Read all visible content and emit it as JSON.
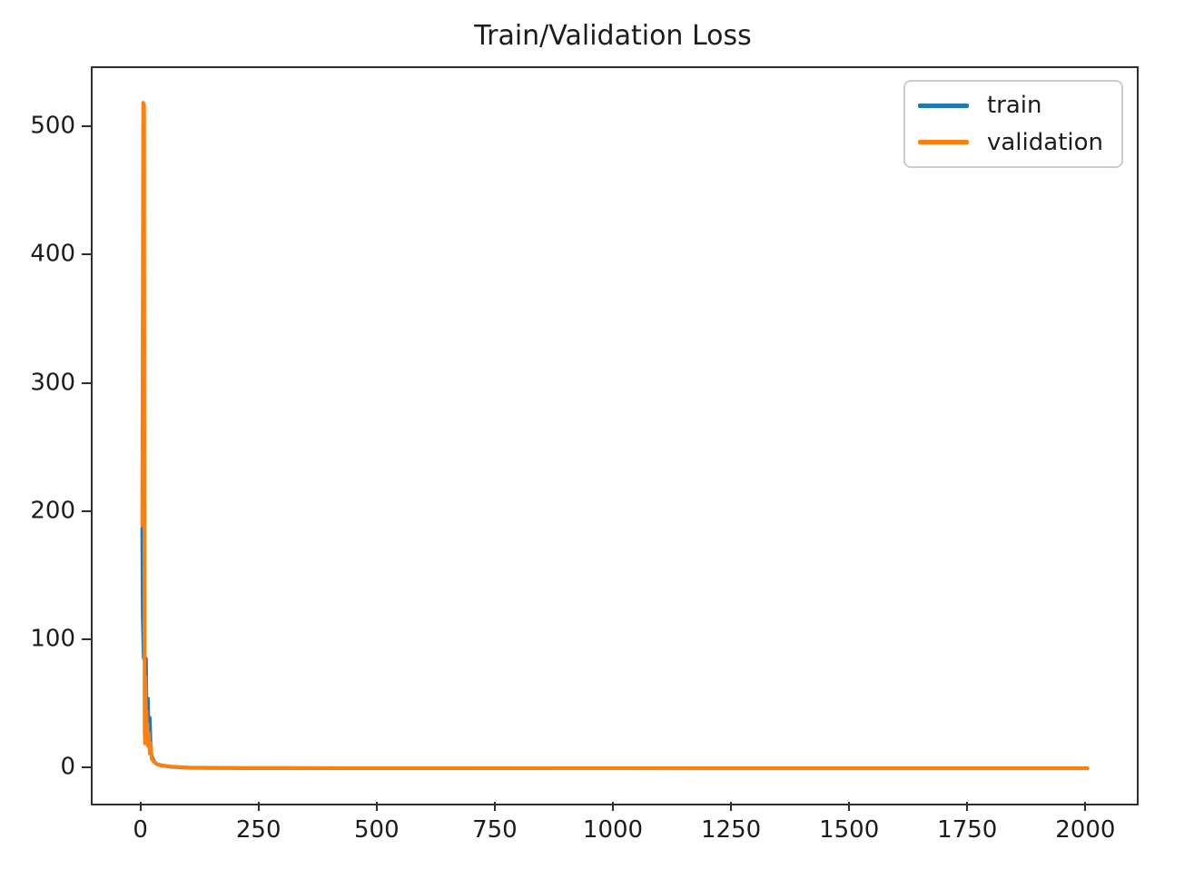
{
  "page": {
    "background": "#ffffff"
  },
  "chart_data": {
    "type": "line",
    "title": "Train/Validation Loss",
    "xlabel": "",
    "ylabel": "",
    "grid": false,
    "xlim": [
      -105,
      2105
    ],
    "ylim": [
      -27,
      547
    ],
    "x_ticks": {
      "values": [
        0,
        250,
        500,
        750,
        1000,
        1250,
        1500,
        1750,
        2000
      ],
      "labels": [
        "0",
        "250",
        "500",
        "750",
        "1000",
        "1250",
        "1500",
        "1750",
        "2000"
      ]
    },
    "y_ticks": {
      "values": [
        0,
        100,
        200,
        300,
        400,
        500
      ],
      "labels": [
        "0",
        "100",
        "200",
        "300",
        "400",
        "500"
      ]
    },
    "legend": {
      "position": "upper right",
      "entries": [
        {
          "name": "train",
          "color": "#1f77b4"
        },
        {
          "name": "validation",
          "color": "#ff7f0e"
        }
      ]
    },
    "series": [
      {
        "name": "train",
        "color": "#1f77b4",
        "line_width": 4,
        "points": [
          [
            0,
            188
          ],
          [
            1,
            120
          ],
          [
            3,
            87
          ],
          [
            5,
            85
          ],
          [
            6,
            87
          ],
          [
            8,
            86
          ],
          [
            9,
            50
          ],
          [
            10,
            30
          ],
          [
            12,
            55
          ],
          [
            14,
            25
          ],
          [
            16,
            40
          ],
          [
            18,
            15
          ],
          [
            20,
            10
          ],
          [
            25,
            6
          ],
          [
            30,
            4
          ],
          [
            40,
            2.8
          ],
          [
            60,
            1.8
          ],
          [
            80,
            1.3
          ],
          [
            100,
            1.0
          ],
          [
            150,
            0.85
          ],
          [
            200,
            0.75
          ],
          [
            300,
            0.7
          ],
          [
            500,
            0.65
          ],
          [
            1000,
            0.6
          ],
          [
            1500,
            0.57
          ],
          [
            2000,
            0.55
          ]
        ]
      },
      {
        "name": "validation",
        "color": "#ff7f0e",
        "line_width": 4,
        "points": [
          [
            0,
            190
          ],
          [
            2,
            520
          ],
          [
            4,
            518
          ],
          [
            5,
            30
          ],
          [
            6,
            20
          ],
          [
            7,
            72
          ],
          [
            8,
            22
          ],
          [
            9,
            45
          ],
          [
            10,
            20
          ],
          [
            11,
            35
          ],
          [
            12,
            18
          ],
          [
            14,
            28
          ],
          [
            16,
            12
          ],
          [
            18,
            20
          ],
          [
            20,
            8
          ],
          [
            25,
            5.5
          ],
          [
            30,
            4.2
          ],
          [
            40,
            3
          ],
          [
            60,
            2
          ],
          [
            80,
            1.5
          ],
          [
            100,
            1.15
          ],
          [
            150,
            0.95
          ],
          [
            200,
            0.85
          ],
          [
            300,
            0.78
          ],
          [
            500,
            0.72
          ],
          [
            1000,
            0.65
          ],
          [
            1500,
            0.62
          ],
          [
            2000,
            0.6
          ]
        ]
      }
    ],
    "colors": {
      "spine": "#2e2e2e",
      "tick_label": "#1c1c1c",
      "title": "#1c1c1c",
      "legend_border": "#cccccc",
      "plot_background": "#ffffff"
    }
  }
}
